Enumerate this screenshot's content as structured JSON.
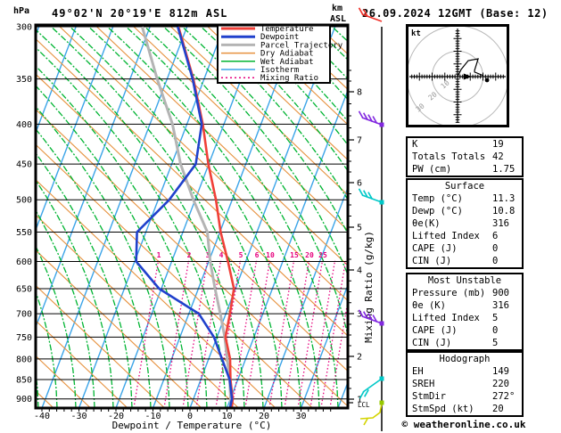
{
  "header": {
    "pressure_unit": "hPa",
    "title": "49°02'N 20°19'E 812m ASL",
    "km_unit": "km",
    "asl_unit": "ASL",
    "datetime": "26.09.2024 12GMT (Base: 12)"
  },
  "chart_data": {
    "type": "skew-t-log-p-sounding",
    "pressure_axis": {
      "unit": "hPa",
      "ticks": [
        300,
        350,
        400,
        450,
        500,
        550,
        600,
        650,
        700,
        750,
        800,
        850,
        900
      ]
    },
    "temp_axis": {
      "label": "Dewpoint / Temperature (°C)",
      "ticks": [
        -40,
        -30,
        -20,
        -10,
        0,
        10,
        20,
        30
      ]
    },
    "km_axis": {
      "ticks": [
        8,
        7,
        6,
        5,
        4,
        3,
        2,
        1
      ],
      "lcl_label": "LCL"
    },
    "mixing_ratio_axis": {
      "label": "Mixing Ratio (g/kg)",
      "values": [
        1,
        2,
        3,
        4,
        5,
        6,
        10,
        15,
        20,
        25
      ]
    },
    "legend": [
      {
        "label": "Temperature",
        "color": "#f04038",
        "lw": 3
      },
      {
        "label": "Dewpoint",
        "color": "#2041cc",
        "lw": 3
      },
      {
        "label": "Parcel Trajectory",
        "color": "#b4b4b4",
        "lw": 3
      },
      {
        "label": "Dry Adiabat",
        "color": "#e6913e",
        "lw": 1.5
      },
      {
        "label": "Wet Adiabat",
        "color": "#00b432",
        "lw": 1.5
      },
      {
        "label": "Isotherm",
        "color": "#3ba4e8",
        "lw": 1.5
      },
      {
        "label": "Mixing Ratio",
        "color": "#e6007d",
        "lw": 1.5,
        "dash": "2 3"
      }
    ],
    "series": {
      "temperature": {
        "color": "#f04038",
        "points_p_t": [
          [
            300,
            -42.3
          ],
          [
            350,
            -32.9
          ],
          [
            400,
            -25.7
          ],
          [
            450,
            -20.1
          ],
          [
            500,
            -14.4
          ],
          [
            550,
            -9.8
          ],
          [
            600,
            -4.8
          ],
          [
            650,
            -0.4
          ],
          [
            700,
            1.1
          ],
          [
            750,
            2.3
          ],
          [
            800,
            5.8
          ],
          [
            850,
            8.0
          ],
          [
            900,
            10.6
          ],
          [
            925,
            11.3
          ]
        ]
      },
      "dewpoint": {
        "color": "#2041cc",
        "points_p_t": [
          [
            300,
            -42.5
          ],
          [
            350,
            -33.1
          ],
          [
            400,
            -26.0
          ],
          [
            450,
            -23.5
          ],
          [
            500,
            -27.0
          ],
          [
            550,
            -32.4
          ],
          [
            600,
            -29.6
          ],
          [
            650,
            -20.6
          ],
          [
            700,
            -7.3
          ],
          [
            750,
            -0.8
          ],
          [
            800,
            3.6
          ],
          [
            850,
            7.8
          ],
          [
            900,
            10.4
          ],
          [
            925,
            10.8
          ]
        ]
      },
      "parcel": {
        "color": "#b4b4b4",
        "points_p_t": [
          [
            300,
            -52.1
          ],
          [
            350,
            -42.7
          ],
          [
            400,
            -33.9
          ],
          [
            450,
            -27.6
          ],
          [
            500,
            -20.5
          ],
          [
            550,
            -13.4
          ],
          [
            600,
            -9.6
          ],
          [
            650,
            -5.5
          ],
          [
            700,
            -1.5
          ],
          [
            750,
            2.1
          ],
          [
            800,
            5.0
          ],
          [
            850,
            7.8
          ],
          [
            925,
            11.1
          ]
        ]
      }
    },
    "wind_barbs": [
      {
        "y": 24,
        "color": "#f03028",
        "side": "up",
        "slashes": 2,
        "dot": false
      },
      {
        "y": 140,
        "color": "#8228e0",
        "side": "up",
        "slashes": 4,
        "dot": true
      },
      {
        "y": 227,
        "color": "#00c8c8",
        "side": "up",
        "slashes": 3,
        "dot": true
      },
      {
        "y": 363,
        "color": "#8228e0",
        "side": "up",
        "slashes": 4,
        "dot": true
      },
      {
        "y": 425,
        "color": "#00c8c8",
        "side": "down",
        "slashes": 2,
        "dot": true
      },
      {
        "y": 452,
        "color": "#d4d400",
        "side": "hook",
        "slashes": 1,
        "dot": true,
        "dot_color": "#96c800"
      }
    ]
  },
  "hodograph": {
    "unit_label": "kt",
    "rings_kt": [
      10,
      20,
      30
    ],
    "trace_uv_kt": [
      [
        0,
        0
      ],
      [
        1.4,
        2.8
      ],
      [
        4.2,
        6.3
      ],
      [
        8.1,
        7.0
      ],
      [
        6.7,
        2.5
      ],
      [
        6.7,
        1.8
      ],
      [
        10.2,
        0.4
      ]
    ],
    "end_dot_uv_kt": [
      11.6,
      -1.4
    ],
    "storm_marker_uv_kt": [
      4.5,
      0
    ]
  },
  "panels": [
    {
      "rows": [
        [
          "K",
          "19"
        ],
        [
          "Totals Totals",
          "42"
        ],
        [
          "PW (cm)",
          "1.75"
        ]
      ]
    },
    {
      "title": "Surface",
      "rows": [
        [
          "Temp (°C)",
          "11.3"
        ],
        [
          "Dewp (°C)",
          "10.8"
        ],
        [
          "θe(K)",
          "316"
        ],
        [
          "Lifted Index",
          "6"
        ],
        [
          "CAPE (J)",
          "0"
        ],
        [
          "CIN (J)",
          "0"
        ]
      ]
    },
    {
      "title": "Most Unstable",
      "rows": [
        [
          "Pressure (mb)",
          "900"
        ],
        [
          "θe (K)",
          "316"
        ],
        [
          "Lifted Index",
          "5"
        ],
        [
          "CAPE (J)",
          "0"
        ],
        [
          "CIN (J)",
          "5"
        ]
      ]
    },
    {
      "title": "Hodograph",
      "rows": [
        [
          "EH",
          "149"
        ],
        [
          "SREH",
          "220"
        ],
        [
          "StmDir",
          "272°"
        ],
        [
          "StmSpd (kt)",
          "20"
        ]
      ]
    }
  ],
  "footer": "© weatheronline.co.uk"
}
